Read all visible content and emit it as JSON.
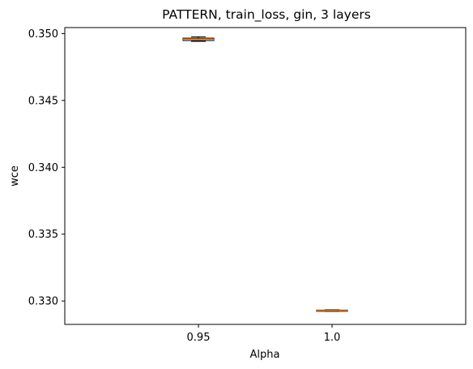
{
  "chart_data": {
    "type": "box",
    "title": "PATTERN, train_loss, gin, 3 layers",
    "xlabel": "Alpha",
    "ylabel": "wce",
    "categories": [
      "0.95",
      "1.0"
    ],
    "boxes": [
      {
        "category": "0.95",
        "whisker_low": 0.34942,
        "q1": 0.34948,
        "median": 0.34958,
        "q3": 0.34966,
        "whisker_high": 0.34976
      },
      {
        "category": "1.0",
        "whisker_low": 0.32922,
        "q1": 0.32924,
        "median": 0.32928,
        "q3": 0.32932,
        "whisker_high": 0.32934
      }
    ],
    "ylim": [
      0.32825,
      0.35045
    ],
    "yticks": [
      0.33,
      0.335,
      0.34,
      0.345,
      0.35
    ],
    "ytick_labels": [
      "0.330",
      "0.335",
      "0.340",
      "0.345",
      "0.350"
    ],
    "grid": false,
    "colors": {
      "box_edge": "#000000",
      "median": "#ff7f0e"
    }
  }
}
